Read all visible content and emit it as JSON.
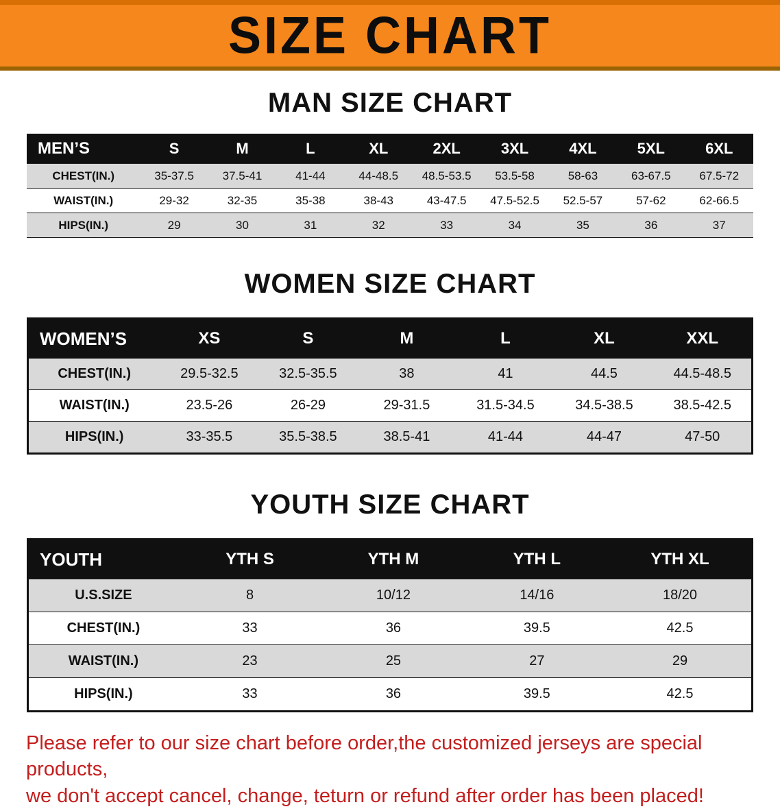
{
  "banner": {
    "title": "SIZE CHART"
  },
  "colors": {
    "banner_bg": "#f6871c",
    "table_header_bg": "#101010",
    "row_stripe": "#d9d9d9",
    "note_text": "#c41e1e"
  },
  "sections": [
    {
      "heading": "MAN SIZE CHART",
      "table": {
        "header": [
          "MEN’S",
          "S",
          "M",
          "L",
          "XL",
          "2XL",
          "3XL",
          "4XL",
          "5XL",
          "6XL"
        ],
        "rows": [
          {
            "label": "CHEST(IN.)",
            "values": [
              "35-37.5",
              "37.5-41",
              "41-44",
              "44-48.5",
              "48.5-53.5",
              "53.5-58",
              "58-63",
              "63-67.5",
              "67.5-72"
            ]
          },
          {
            "label": "WAIST(IN.)",
            "values": [
              "29-32",
              "32-35",
              "35-38",
              "38-43",
              "43-47.5",
              "47.5-52.5",
              "52.5-57",
              "57-62",
              "62-66.5"
            ]
          },
          {
            "label": "HIPS(IN.)",
            "values": [
              "29",
              "30",
              "31",
              "32",
              "33",
              "34",
              "35",
              "36",
              "37"
            ]
          }
        ]
      }
    },
    {
      "heading": "WOMEN SIZE CHART",
      "table": {
        "header": [
          "WOMEN’S",
          "XS",
          "S",
          "M",
          "L",
          "XL",
          "XXL"
        ],
        "rows": [
          {
            "label": "CHEST(IN.)",
            "values": [
              "29.5-32.5",
              "32.5-35.5",
              "38",
              "41",
              "44.5",
              "44.5-48.5"
            ]
          },
          {
            "label": "WAIST(IN.)",
            "values": [
              "23.5-26",
              "26-29",
              "29-31.5",
              "31.5-34.5",
              "34.5-38.5",
              "38.5-42.5"
            ]
          },
          {
            "label": "HIPS(IN.)",
            "values": [
              "33-35.5",
              "35.5-38.5",
              "38.5-41",
              "41-44",
              "44-47",
              "47-50"
            ]
          }
        ]
      }
    },
    {
      "heading": "YOUTH SIZE CHART",
      "table": {
        "header": [
          "YOUTH",
          "YTH S",
          "YTH M",
          "YTH L",
          "YTH XL"
        ],
        "rows": [
          {
            "label": "U.S.SIZE",
            "values": [
              "8",
              "10/12",
              "14/16",
              "18/20"
            ]
          },
          {
            "label": "CHEST(IN.)",
            "values": [
              "33",
              "36",
              "39.5",
              "42.5"
            ]
          },
          {
            "label": "WAIST(IN.)",
            "values": [
              "23",
              "25",
              "27",
              "29"
            ]
          },
          {
            "label": "HIPS(IN.)",
            "values": [
              "33",
              "36",
              "39.5",
              "42.5"
            ]
          }
        ]
      }
    }
  ],
  "footer": {
    "line1": "Please refer to our size chart before order,the customized jerseys are special products,",
    "line2": "we don't accept cancel, change, teturn or refund after order has been placed!"
  }
}
